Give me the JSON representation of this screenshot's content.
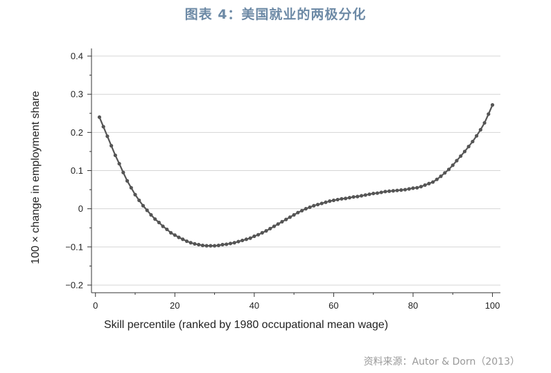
{
  "figure": {
    "title": "图表 4：美国就业的两极分化",
    "source": "资料来源：Autor & Dorn（2013）"
  },
  "chart_data": {
    "type": "line",
    "xlabel": "Skill percentile (ranked by 1980 occupational mean wage)",
    "ylabel": "100 × change in employment share",
    "xlim": [
      -1,
      102
    ],
    "ylim": [
      -0.22,
      0.42
    ],
    "x_ticks": [
      0,
      20,
      40,
      60,
      80,
      100
    ],
    "x_tick_labels": [
      "0",
      "20",
      "40",
      "60",
      "80",
      "100"
    ],
    "y_ticks": [
      0.4,
      0.3,
      0.2,
      0.1,
      0.0,
      -0.1,
      -0.2
    ],
    "y_tick_labels": [
      "0.4",
      "0.3",
      "0.2",
      "0.1",
      "0",
      "−0.1",
      "−0.2"
    ],
    "grid": "horizontal",
    "series": [
      {
        "color": "#555555",
        "x": [
          1,
          2,
          3,
          4,
          5,
          6,
          7,
          8,
          9,
          10,
          11,
          12,
          13,
          14,
          15,
          16,
          17,
          18,
          19,
          20,
          21,
          22,
          23,
          24,
          25,
          26,
          27,
          28,
          29,
          30,
          31,
          32,
          33,
          34,
          35,
          36,
          37,
          38,
          39,
          40,
          41,
          42,
          43,
          44,
          45,
          46,
          47,
          48,
          49,
          50,
          51,
          52,
          53,
          54,
          55,
          56,
          57,
          58,
          59,
          60,
          61,
          62,
          63,
          64,
          65,
          66,
          67,
          68,
          69,
          70,
          71,
          72,
          73,
          74,
          75,
          76,
          77,
          78,
          79,
          80,
          81,
          82,
          83,
          84,
          85,
          86,
          87,
          88,
          89,
          90,
          91,
          92,
          93,
          94,
          95,
          96,
          97,
          98,
          99,
          100
        ],
        "y": [
          0.24,
          0.215,
          0.19,
          0.165,
          0.14,
          0.118,
          0.095,
          0.073,
          0.055,
          0.037,
          0.022,
          0.008,
          -0.004,
          -0.016,
          -0.027,
          -0.036,
          -0.046,
          -0.054,
          -0.063,
          -0.069,
          -0.075,
          -0.08,
          -0.085,
          -0.089,
          -0.092,
          -0.094,
          -0.096,
          -0.097,
          -0.097,
          -0.097,
          -0.096,
          -0.094,
          -0.093,
          -0.091,
          -0.089,
          -0.086,
          -0.083,
          -0.08,
          -0.077,
          -0.072,
          -0.068,
          -0.063,
          -0.058,
          -0.052,
          -0.046,
          -0.04,
          -0.034,
          -0.028,
          -0.022,
          -0.016,
          -0.01,
          -0.005,
          0.0,
          0.004,
          0.008,
          0.011,
          0.014,
          0.017,
          0.02,
          0.022,
          0.024,
          0.026,
          0.027,
          0.029,
          0.031,
          0.032,
          0.034,
          0.036,
          0.038,
          0.04,
          0.041,
          0.043,
          0.045,
          0.046,
          0.047,
          0.048,
          0.049,
          0.05,
          0.052,
          0.054,
          0.055,
          0.058,
          0.062,
          0.066,
          0.07,
          0.077,
          0.085,
          0.094,
          0.103,
          0.114,
          0.126,
          0.138,
          0.15,
          0.163,
          0.176,
          0.191,
          0.207,
          0.225,
          0.248,
          0.272
        ]
      }
    ]
  }
}
